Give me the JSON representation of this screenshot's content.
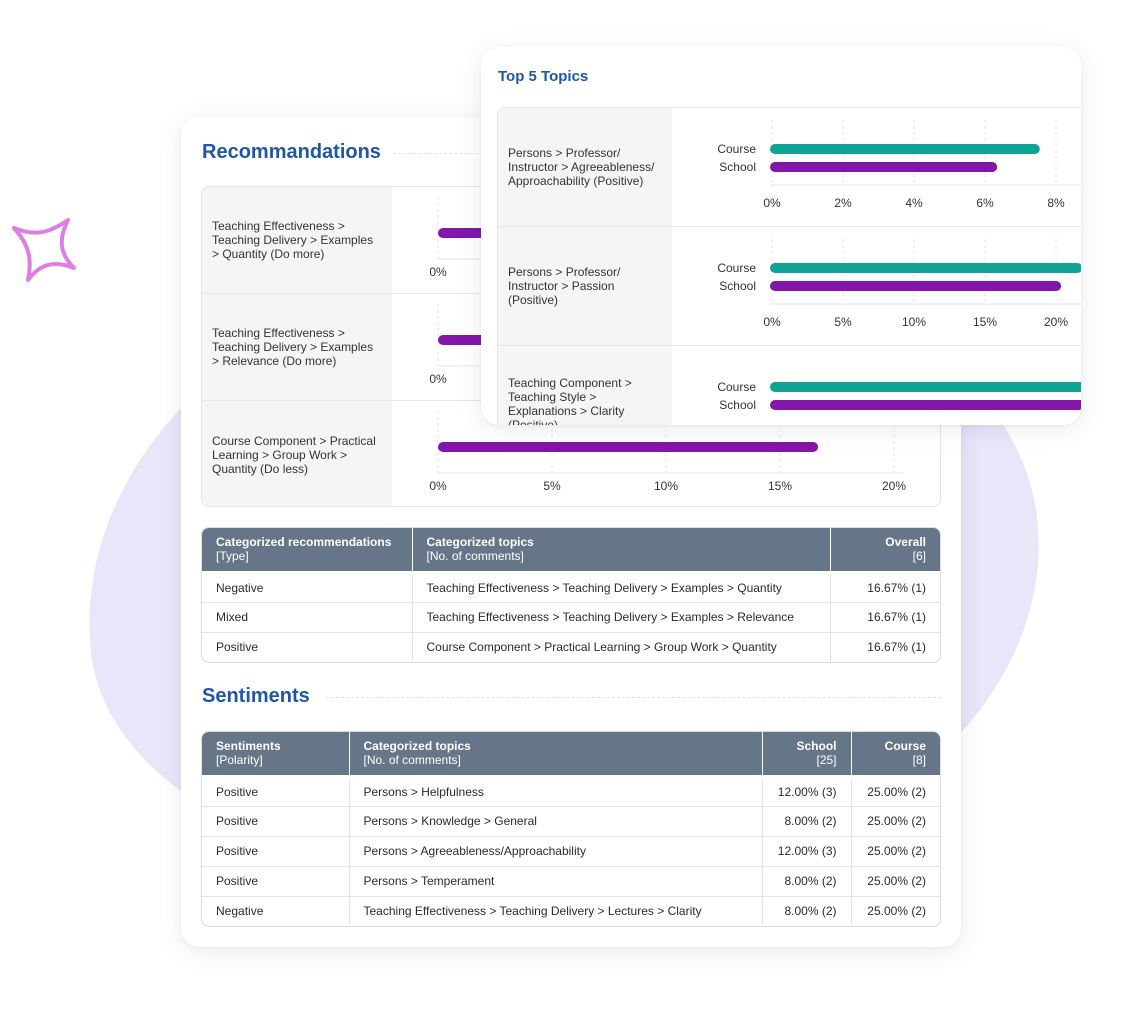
{
  "recommendations": {
    "title": "Recommandations",
    "rows": [
      {
        "label": "Teaching Effectiveness > Teaching Delivery > Examples > Quantity (Do more)",
        "value": 16.67
      },
      {
        "label": "Teaching Effectiveness > Teaching Delivery > Examples > Relevance (Do more)",
        "value": 16.67
      },
      {
        "label": "Course Component > Practical Learning > Group Work > Quantity (Do less)",
        "value": 16.67
      }
    ],
    "ticks": [
      "0%",
      "5%",
      "10%",
      "15%",
      "20%"
    ],
    "table": {
      "headers": [
        {
          "title": "Categorized recommendations",
          "sub": "[Type]"
        },
        {
          "title": "Categorized topics",
          "sub": "[No. of comments]"
        },
        {
          "title": "Overall",
          "sub": "[6]"
        }
      ],
      "rows": [
        {
          "type": "Negative",
          "topic": "Teaching Effectiveness > Teaching Delivery > Examples > Quantity",
          "overall": "16.67% (1)"
        },
        {
          "type": "Mixed",
          "topic": "Teaching Effectiveness > Teaching Delivery > Examples > Relevance",
          "overall": "16.67% (1)"
        },
        {
          "type": "Positive",
          "topic": "Course Component > Practical Learning > Group Work > Quantity",
          "overall": "16.67% (1)"
        }
      ]
    }
  },
  "sentiments": {
    "title": "Sentiments",
    "table": {
      "headers": [
        {
          "title": "Sentiments",
          "sub": "[Polarity]"
        },
        {
          "title": "Categorized topics",
          "sub": "[No. of comments]"
        },
        {
          "title": "School",
          "sub": "[25]"
        },
        {
          "title": "Course",
          "sub": "[8]"
        }
      ],
      "rows": [
        {
          "polarity": "Positive",
          "topic": "Persons > Helpfulness",
          "school": "12.00% (3)",
          "course": "25.00% (2)"
        },
        {
          "polarity": "Positive",
          "topic": "Persons > Knowledge > General",
          "school": "8.00% (2)",
          "course": "25.00% (2)"
        },
        {
          "polarity": "Positive",
          "topic": "Persons > Agreeableness/Approachability",
          "school": "12.00% (3)",
          "course": "25.00% (2)"
        },
        {
          "polarity": "Positive",
          "topic": "Persons > Temperament",
          "school": "8.00% (2)",
          "course": "25.00% (2)"
        },
        {
          "polarity": "Negative",
          "topic": "Teaching Effectiveness > Teaching Delivery > Lectures > Clarity",
          "school": "8.00% (2)",
          "course": "25.00% (2)"
        }
      ]
    }
  },
  "top_topics": {
    "title": "Top 5 Topics",
    "series_labels": [
      "Course",
      "School"
    ],
    "rows": [
      {
        "label": "Persons > Professor/ Instructor > Agreeableness/ Approachability (Positive)",
        "course": 7.6,
        "school": 6.4,
        "ticks": [
          "0%",
          "2%",
          "4%",
          "6%",
          "8%"
        ],
        "max": 8
      },
      {
        "label": "Persons > Professor/ Instructor > Passion (Positive)",
        "course": 22,
        "school": 20.5,
        "ticks": [
          "0%",
          "5%",
          "10%",
          "15%",
          "20%"
        ],
        "max": 20
      },
      {
        "label": "Teaching Component > Teaching Style > Explanations > Clarity (Positive)",
        "course": 25,
        "school": 25,
        "ticks": [],
        "max": 20
      }
    ]
  },
  "colors": {
    "course": "#0fa396",
    "school": "#8316a8",
    "title": "#1f57a6",
    "header": "#667587"
  },
  "chart_data": [
    {
      "type": "bar",
      "title": "Recommandations",
      "categories": [
        "Teaching Effectiveness > Teaching Delivery > Examples > Quantity (Do more)",
        "Teaching Effectiveness > Teaching Delivery > Examples > Relevance (Do more)",
        "Course Component > Practical Learning > Group Work > Quantity (Do less)"
      ],
      "values": [
        16.67,
        16.67,
        16.67
      ],
      "xlim": [
        0,
        20
      ]
    },
    {
      "type": "bar",
      "title": "Top 5 Topics",
      "categories": [
        "Persons > Professor/ Instructor > Agreeableness/ Approachability (Positive)",
        "Persons > Professor/ Instructor > Passion (Positive)",
        "Teaching Component > Teaching Style > Explanations > Clarity (Positive)"
      ],
      "series": [
        {
          "name": "Course",
          "values": [
            7.6,
            22,
            25
          ]
        },
        {
          "name": "School",
          "values": [
            6.4,
            20.5,
            25
          ]
        }
      ]
    }
  ]
}
